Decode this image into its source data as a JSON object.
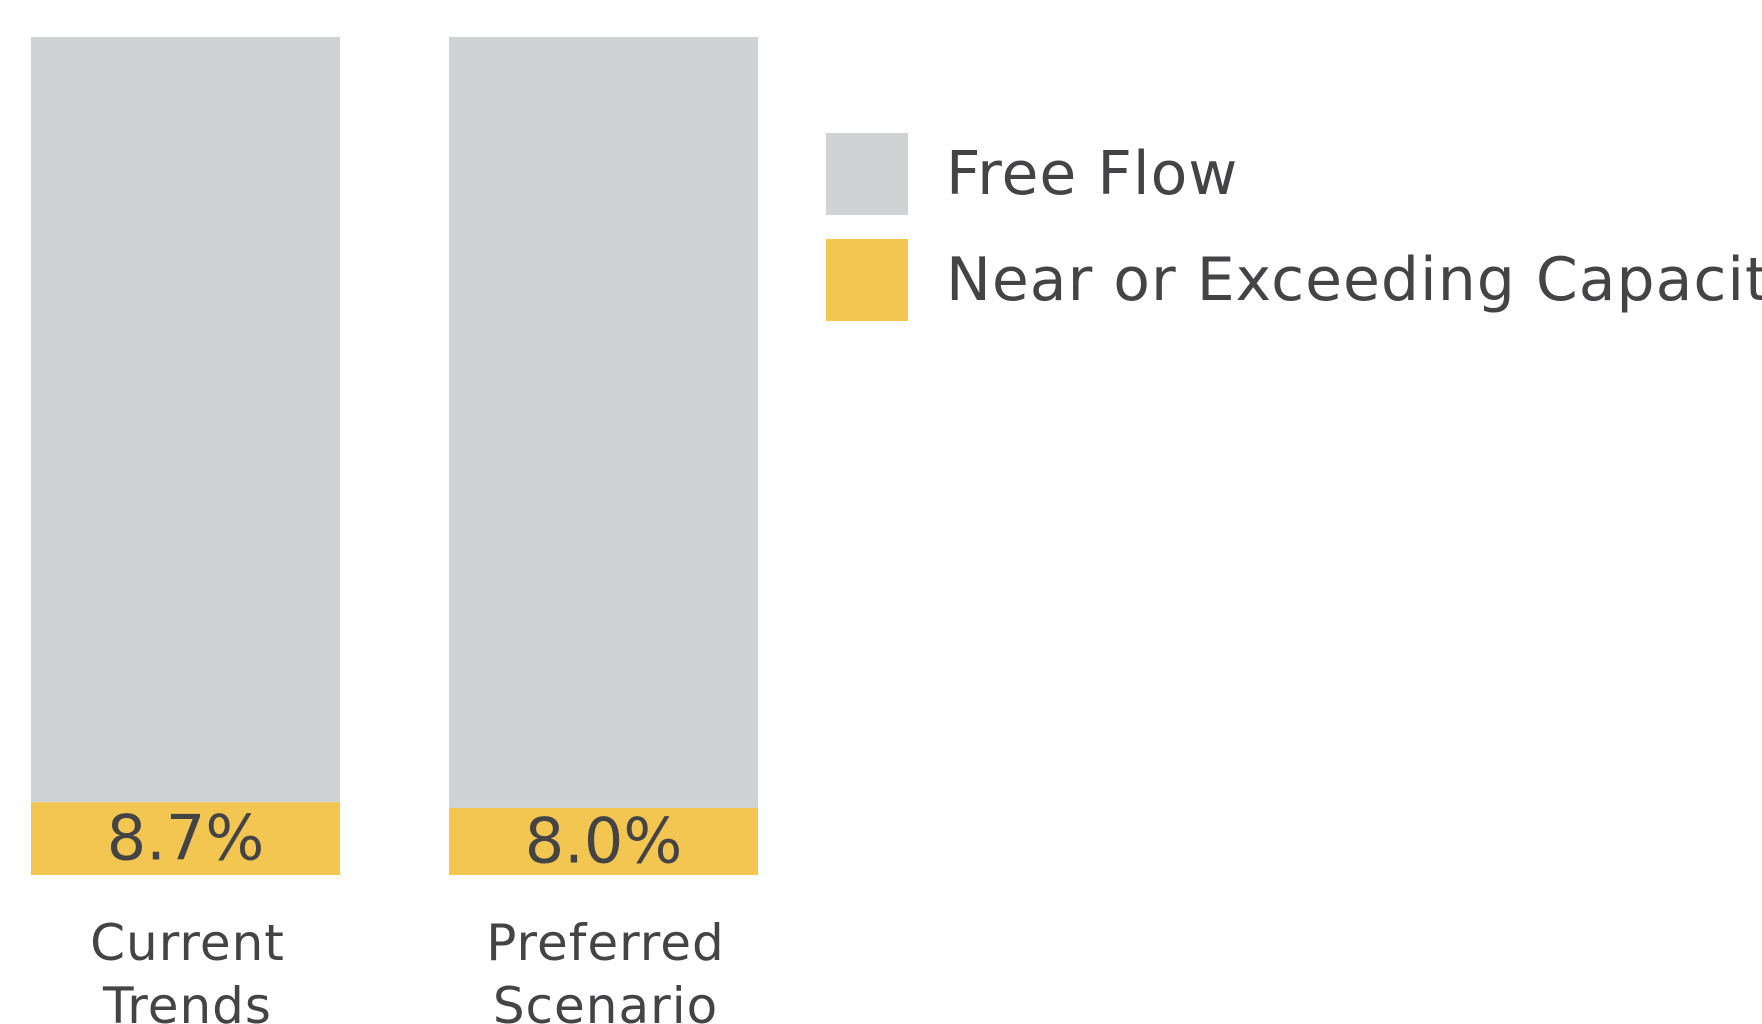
{
  "chart_data": {
    "type": "bar",
    "stacked": true,
    "categories": [
      "Current Trends",
      "Preferred Scenario"
    ],
    "category_lines": [
      [
        "Current",
        "Trends"
      ],
      [
        "Preferred",
        "Scenario"
      ]
    ],
    "series": [
      {
        "name": "Free Flow",
        "values": [
          91.3,
          92.0
        ],
        "color": "#d0d3d4"
      },
      {
        "name": "Near or Exceeding Capacity",
        "values": [
          8.7,
          8.0
        ],
        "color": "#f3c651"
      }
    ],
    "data_labels": [
      "8.7%",
      "8.0%"
    ],
    "ylim": [
      0,
      100
    ],
    "grid": false,
    "legend_position": "top-right"
  },
  "legend": {
    "items": [
      {
        "label": "Free Flow",
        "color": "#d0d3d4"
      },
      {
        "label": "Near or Exceeding Capacity",
        "color": "#f3c651"
      }
    ]
  }
}
